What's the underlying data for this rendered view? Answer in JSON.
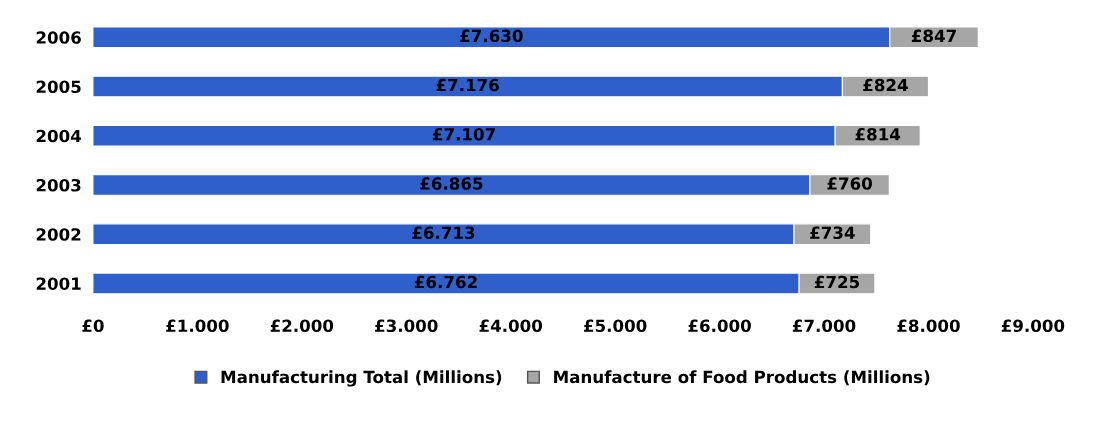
{
  "chart_data": {
    "type": "bar",
    "orientation": "horizontal",
    "stacked": true,
    "categories": [
      "2006",
      "2005",
      "2004",
      "2003",
      "2002",
      "2001"
    ],
    "series": [
      {
        "name": "Manufacturing Total (Millions)",
        "color": "#2f5fcb",
        "values": [
          7630,
          7176,
          7107,
          6865,
          6713,
          6762
        ],
        "value_labels": [
          "£7.630",
          "£7.176",
          "£7.107",
          "£6.865",
          "£6.713",
          "£6.762"
        ]
      },
      {
        "name": "Manufacture of Food Products (Millions)",
        "color": "#a6a6a6",
        "values": [
          847,
          824,
          814,
          760,
          734,
          725
        ],
        "value_labels": [
          "£847",
          "£824",
          "£814",
          "£760",
          "£734",
          "£725"
        ]
      }
    ],
    "xlim": [
      0,
      9000
    ],
    "xticks": [
      {
        "value": 0,
        "label": "£0"
      },
      {
        "value": 1000,
        "label": "£1.000"
      },
      {
        "value": 2000,
        "label": "£2.000"
      },
      {
        "value": 3000,
        "label": "£3.000"
      },
      {
        "value": 4000,
        "label": "£4.000"
      },
      {
        "value": 5000,
        "label": "£5.000"
      },
      {
        "value": 6000,
        "label": "£6.000"
      },
      {
        "value": 7000,
        "label": "£7.000"
      },
      {
        "value": 8000,
        "label": "£8.000"
      },
      {
        "value": 9000,
        "label": "£9.000"
      }
    ],
    "legend": "bottom",
    "grid": false
  }
}
